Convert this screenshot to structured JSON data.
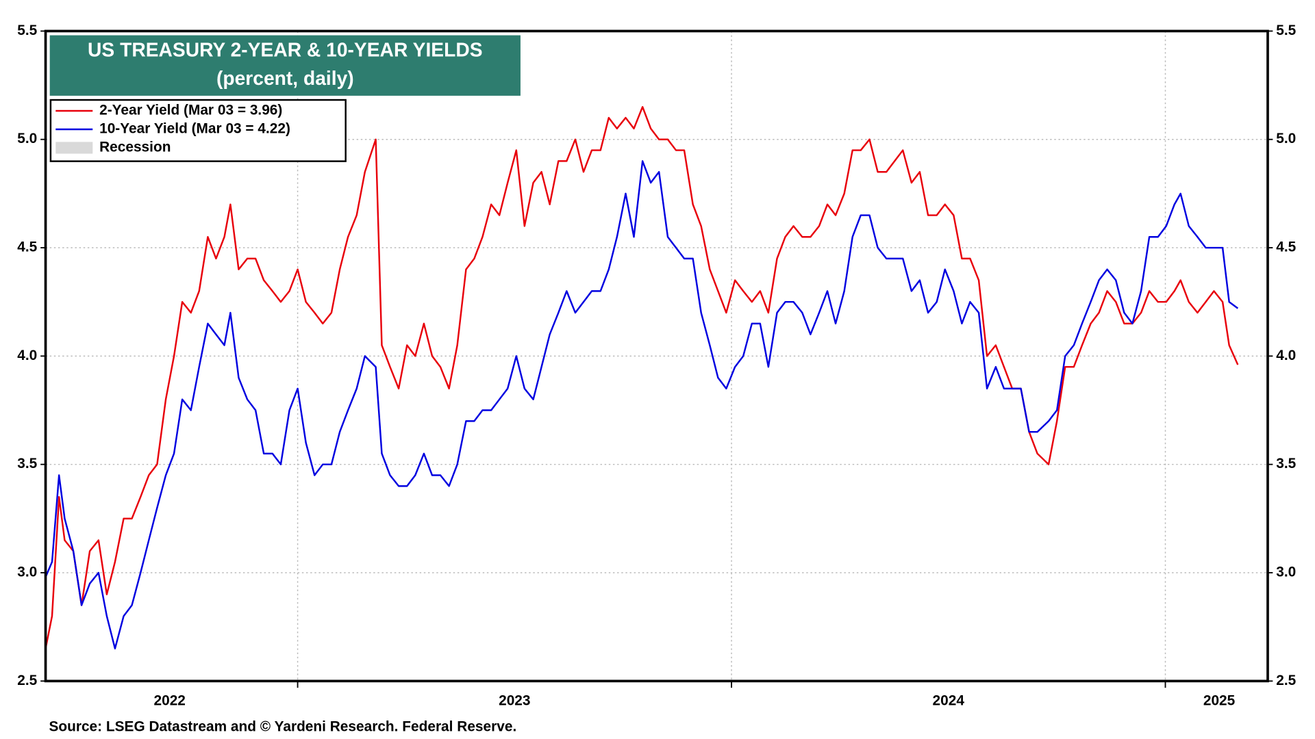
{
  "chart_data": {
    "type": "line",
    "title": "US TREASURY 2-YEAR & 10-YEAR YIELDS",
    "subtitle": "(percent, daily)",
    "source": "Source: LSEG Datastream and © Yardeni Research. Federal Reserve.",
    "recession_label": "Recession",
    "recession_color": "#d9d9d9",
    "x": [
      2022.419,
      2022.434,
      2022.45,
      2022.463,
      2022.483,
      2022.502,
      2022.521,
      2022.541,
      2022.56,
      2022.579,
      2022.599,
      2022.618,
      2022.638,
      2022.657,
      2022.676,
      2022.696,
      2022.715,
      2022.734,
      2022.754,
      2022.773,
      2022.793,
      2022.812,
      2022.831,
      2022.845,
      2022.864,
      2022.884,
      2022.903,
      2022.922,
      2022.942,
      2022.961,
      2022.981,
      2023.0,
      2023.019,
      2023.039,
      2023.058,
      2023.078,
      2023.097,
      2023.116,
      2023.136,
      2023.155,
      2023.18,
      2023.194,
      2023.213,
      2023.233,
      2023.252,
      2023.271,
      2023.291,
      2023.31,
      2023.329,
      2023.349,
      2023.368,
      2023.388,
      2023.407,
      2023.426,
      2023.446,
      2023.465,
      2023.484,
      2023.504,
      2023.523,
      2023.543,
      2023.562,
      2023.581,
      2023.601,
      2023.62,
      2023.64,
      2023.659,
      2023.678,
      2023.698,
      2023.717,
      2023.736,
      2023.756,
      2023.775,
      2023.795,
      2023.814,
      2023.833,
      2023.853,
      2023.872,
      2023.891,
      2023.911,
      2023.93,
      2023.95,
      2023.969,
      2023.988,
      2024.008,
      2024.027,
      2024.047,
      2024.066,
      2024.085,
      2024.105,
      2024.124,
      2024.143,
      2024.163,
      2024.182,
      2024.202,
      2024.221,
      2024.24,
      2024.26,
      2024.279,
      2024.298,
      2024.318,
      2024.337,
      2024.357,
      2024.376,
      2024.395,
      2024.415,
      2024.434,
      2024.453,
      2024.473,
      2024.492,
      2024.512,
      2024.531,
      2024.55,
      2024.57,
      2024.589,
      2024.609,
      2024.628,
      2024.647,
      2024.667,
      2024.686,
      2024.705,
      2024.731,
      2024.75,
      2024.769,
      2024.789,
      2024.808,
      2024.828,
      2024.847,
      2024.866,
      2024.886,
      2024.905,
      2024.924,
      2024.944,
      2024.963,
      2024.983,
      2025.002,
      2025.021,
      2025.035,
      2025.054,
      2025.074,
      2025.093,
      2025.112,
      2025.132,
      2025.147,
      2025.167
    ],
    "series": [
      {
        "name": "2-Year Yield (Mar 03 = 3.96)",
        "color": "#e8000b",
        "values": [
          2.65,
          2.8,
          3.35,
          3.15,
          3.1,
          2.85,
          3.1,
          3.15,
          2.9,
          3.05,
          3.25,
          3.25,
          3.35,
          3.45,
          3.5,
          3.8,
          4.0,
          4.25,
          4.2,
          4.3,
          4.55,
          4.45,
          4.55,
          4.7,
          4.4,
          4.45,
          4.45,
          4.35,
          4.3,
          4.25,
          4.3,
          4.4,
          4.25,
          4.2,
          4.15,
          4.2,
          4.4,
          4.55,
          4.65,
          4.85,
          5.0,
          4.05,
          3.95,
          3.85,
          4.05,
          4.0,
          4.15,
          4.0,
          3.95,
          3.85,
          4.05,
          4.4,
          4.45,
          4.55,
          4.7,
          4.65,
          4.8,
          4.95,
          4.6,
          4.8,
          4.85,
          4.7,
          4.9,
          4.9,
          5.0,
          4.85,
          4.95,
          4.95,
          5.1,
          5.05,
          5.1,
          5.05,
          5.15,
          5.05,
          5.0,
          5.0,
          4.95,
          4.95,
          4.7,
          4.6,
          4.4,
          4.3,
          4.2,
          4.35,
          4.3,
          4.25,
          4.3,
          4.2,
          4.45,
          4.55,
          4.6,
          4.55,
          4.55,
          4.6,
          4.7,
          4.65,
          4.75,
          4.95,
          4.95,
          5.0,
          4.85,
          4.85,
          4.9,
          4.95,
          4.8,
          4.85,
          4.65,
          4.65,
          4.7,
          4.65,
          4.45,
          4.45,
          4.35,
          4.0,
          4.05,
          3.95,
          3.85,
          3.85,
          3.65,
          3.55,
          3.5,
          3.7,
          3.95,
          3.95,
          4.05,
          4.15,
          4.2,
          4.3,
          4.25,
          4.15,
          4.15,
          4.2,
          4.3,
          4.25,
          4.25,
          4.3,
          4.35,
          4.25,
          4.2,
          4.25,
          4.3,
          4.25,
          4.05,
          3.96
        ]
      },
      {
        "name": "10-Year Yield (Mar 03 = 4.22)",
        "color": "#0000e0",
        "values": [
          2.98,
          3.05,
          3.45,
          3.25,
          3.1,
          2.85,
          2.95,
          3.0,
          2.8,
          2.65,
          2.8,
          2.85,
          3.0,
          3.15,
          3.3,
          3.45,
          3.55,
          3.8,
          3.75,
          3.95,
          4.15,
          4.1,
          4.05,
          4.2,
          3.9,
          3.8,
          3.75,
          3.55,
          3.55,
          3.5,
          3.75,
          3.85,
          3.6,
          3.45,
          3.5,
          3.5,
          3.65,
          3.75,
          3.85,
          4.0,
          3.95,
          3.55,
          3.45,
          3.4,
          3.4,
          3.45,
          3.55,
          3.45,
          3.45,
          3.4,
          3.5,
          3.7,
          3.7,
          3.75,
          3.75,
          3.8,
          3.85,
          4.0,
          3.85,
          3.8,
          3.95,
          4.1,
          4.2,
          4.3,
          4.2,
          4.25,
          4.3,
          4.3,
          4.4,
          4.55,
          4.75,
          4.55,
          4.9,
          4.8,
          4.85,
          4.55,
          4.5,
          4.45,
          4.45,
          4.2,
          4.05,
          3.9,
          3.85,
          3.95,
          4.0,
          4.15,
          4.15,
          3.95,
          4.2,
          4.25,
          4.25,
          4.2,
          4.1,
          4.2,
          4.3,
          4.15,
          4.3,
          4.55,
          4.65,
          4.65,
          4.5,
          4.45,
          4.45,
          4.45,
          4.3,
          4.35,
          4.2,
          4.25,
          4.4,
          4.3,
          4.15,
          4.25,
          4.2,
          3.85,
          3.95,
          3.85,
          3.85,
          3.85,
          3.65,
          3.65,
          3.7,
          3.75,
          4.0,
          4.05,
          4.15,
          4.25,
          4.35,
          4.4,
          4.35,
          4.2,
          4.15,
          4.3,
          4.55,
          4.55,
          4.6,
          4.7,
          4.75,
          4.6,
          4.55,
          4.5,
          4.5,
          4.5,
          4.25,
          4.22
        ]
      }
    ],
    "xlim": [
      2022.419,
      2025.236
    ],
    "xticks": [
      {
        "value": 2022.705,
        "label": "2022"
      },
      {
        "value": 2023.5,
        "label": "2023"
      },
      {
        "value": 2024.5,
        "label": "2024"
      },
      {
        "value": 2025.124,
        "label": "2025"
      }
    ],
    "xgrid": [
      2023,
      2024,
      2025
    ],
    "ylim": [
      2.5,
      5.5
    ],
    "yticks": [
      2.5,
      {
        "value": 3,
        "label": "3.0"
      },
      3.5,
      {
        "value": 4,
        "label": "4.0"
      },
      4.5,
      {
        "value": 5,
        "label": "5.0"
      },
      5.5
    ],
    "y2lim": [
      2.5,
      5.5
    ],
    "y2ticks": [
      2.5,
      {
        "value": 3,
        "label": "3.0"
      },
      3.5,
      {
        "value": 4,
        "label": "4.0"
      },
      4.5,
      {
        "value": 5,
        "label": "5.0"
      },
      5.5
    ],
    "grid": true,
    "title_color": "#2e7d6f"
  }
}
